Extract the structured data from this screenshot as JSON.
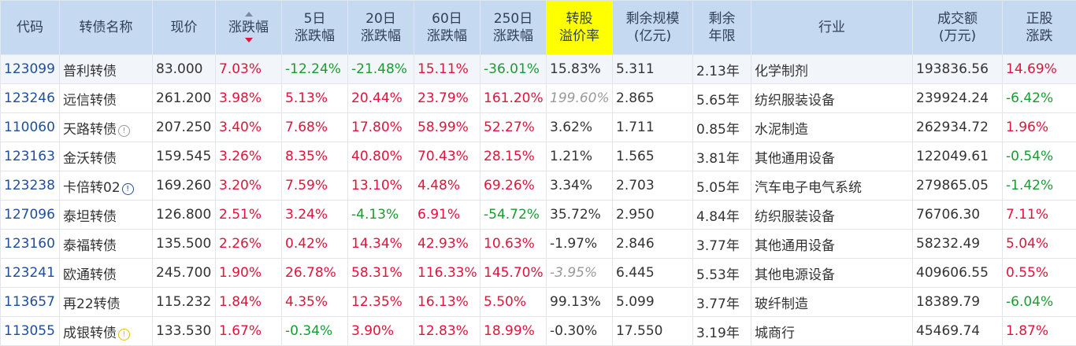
{
  "headers": {
    "code": "代码",
    "name": "转债名称",
    "price": "现价",
    "change": "涨跌幅",
    "d5_l1": "5日",
    "d5_l2": "涨跌幅",
    "d20_l1": "20日",
    "d20_l2": "涨跌幅",
    "d60_l1": "60日",
    "d60_l2": "涨跌幅",
    "d250_l1": "250日",
    "d250_l2": "涨跌幅",
    "premium_l1": "转股",
    "premium_l2": "溢价率",
    "scale_l1": "剩余规模",
    "scale_l2": "(亿元)",
    "years_l1": "剩余",
    "years_l2": "年限",
    "industry": "行业",
    "volume_l1": "成交额",
    "volume_l2": "(万元)",
    "stock_l1": "正股",
    "stock_l2": "涨跌"
  },
  "colors": {
    "header_bg": "#c5daf1",
    "premium_header_bg": "#ffff00",
    "up": "#e0143c",
    "down": "#1a9b33",
    "code": "#1f4e9d",
    "gray": "#9a9a9a"
  },
  "rows": [
    {
      "code": "123099",
      "name": "普利转债",
      "price": "83.000",
      "change": "7.03%",
      "d5": "-12.24%",
      "d20": "-21.48%",
      "d60": "15.11%",
      "d250": "-36.01%",
      "premium": "15.83%",
      "scale": "5.311",
      "years": "2.13年",
      "industry": "化学制剂",
      "volume": "193836.56",
      "stock": "14.69%",
      "icon": ""
    },
    {
      "code": "123246",
      "name": "远信转债",
      "price": "261.200",
      "change": "3.98%",
      "d5": "5.13%",
      "d20": "20.44%",
      "d60": "23.79%",
      "d250": "161.20%",
      "premium": "199.60%",
      "scale": "2.865",
      "years": "5.65年",
      "industry": "纺织服装设备",
      "volume": "239924.24",
      "stock": "-6.42%",
      "icon": "",
      "premium_gray": true
    },
    {
      "code": "110060",
      "name": "天路转债",
      "price": "207.250",
      "change": "3.40%",
      "d5": "7.68%",
      "d20": "17.80%",
      "d60": "58.99%",
      "d250": "52.27%",
      "premium": "3.62%",
      "scale": "1.711",
      "years": "0.85年",
      "industry": "水泥制造",
      "volume": "262934.72",
      "stock": "1.96%",
      "icon": "info-gray"
    },
    {
      "code": "123163",
      "name": "金沃转债",
      "price": "159.545",
      "change": "3.26%",
      "d5": "8.35%",
      "d20": "40.80%",
      "d60": "70.43%",
      "d250": "28.15%",
      "premium": "1.21%",
      "scale": "1.565",
      "years": "3.81年",
      "industry": "其他通用设备",
      "volume": "122049.61",
      "stock": "-0.54%",
      "icon": ""
    },
    {
      "code": "123238",
      "name": "卡倍转02",
      "price": "169.260",
      "change": "3.20%",
      "d5": "7.59%",
      "d20": "13.10%",
      "d60": "4.48%",
      "d250": "69.26%",
      "premium": "3.34%",
      "scale": "2.703",
      "years": "5.05年",
      "industry": "汽车电子电气系统",
      "volume": "279865.05",
      "stock": "-1.42%",
      "icon": "info-blue"
    },
    {
      "code": "127096",
      "name": "泰坦转债",
      "price": "126.800",
      "change": "2.51%",
      "d5": "3.24%",
      "d20": "-4.13%",
      "d60": "6.91%",
      "d250": "-54.72%",
      "premium": "35.72%",
      "scale": "2.950",
      "years": "4.84年",
      "industry": "纺织服装设备",
      "volume": "76706.30",
      "stock": "7.11%",
      "icon": ""
    },
    {
      "code": "123160",
      "name": "泰福转债",
      "price": "135.500",
      "change": "2.26%",
      "d5": "0.42%",
      "d20": "14.34%",
      "d60": "42.93%",
      "d250": "10.63%",
      "premium": "-1.97%",
      "scale": "2.846",
      "years": "3.77年",
      "industry": "其他通用设备",
      "volume": "58232.49",
      "stock": "5.04%",
      "icon": ""
    },
    {
      "code": "123241",
      "name": "欧通转债",
      "price": "245.700",
      "change": "1.90%",
      "d5": "26.78%",
      "d20": "58.31%",
      "d60": "116.33%",
      "d250": "145.70%",
      "premium": "-3.95%",
      "scale": "6.445",
      "years": "5.53年",
      "industry": "其他电源设备",
      "volume": "409606.55",
      "stock": "0.55%",
      "icon": "",
      "premium_gray": true
    },
    {
      "code": "113657",
      "name": "再22转债",
      "price": "115.232",
      "change": "1.84%",
      "d5": "4.35%",
      "d20": "12.35%",
      "d60": "16.13%",
      "d250": "5.50%",
      "premium": "99.13%",
      "scale": "5.099",
      "years": "3.77年",
      "industry": "玻纤制造",
      "volume": "18389.79",
      "stock": "-6.04%",
      "icon": ""
    },
    {
      "code": "113055",
      "name": "成银转债",
      "price": "133.530",
      "change": "1.67%",
      "d5": "-0.34%",
      "d20": "3.90%",
      "d60": "12.83%",
      "d250": "18.99%",
      "premium": "-0.30%",
      "scale": "17.550",
      "years": "3.19年",
      "industry": "城商行",
      "volume": "45469.74",
      "stock": "1.87%",
      "icon": "info-yellow"
    }
  ]
}
